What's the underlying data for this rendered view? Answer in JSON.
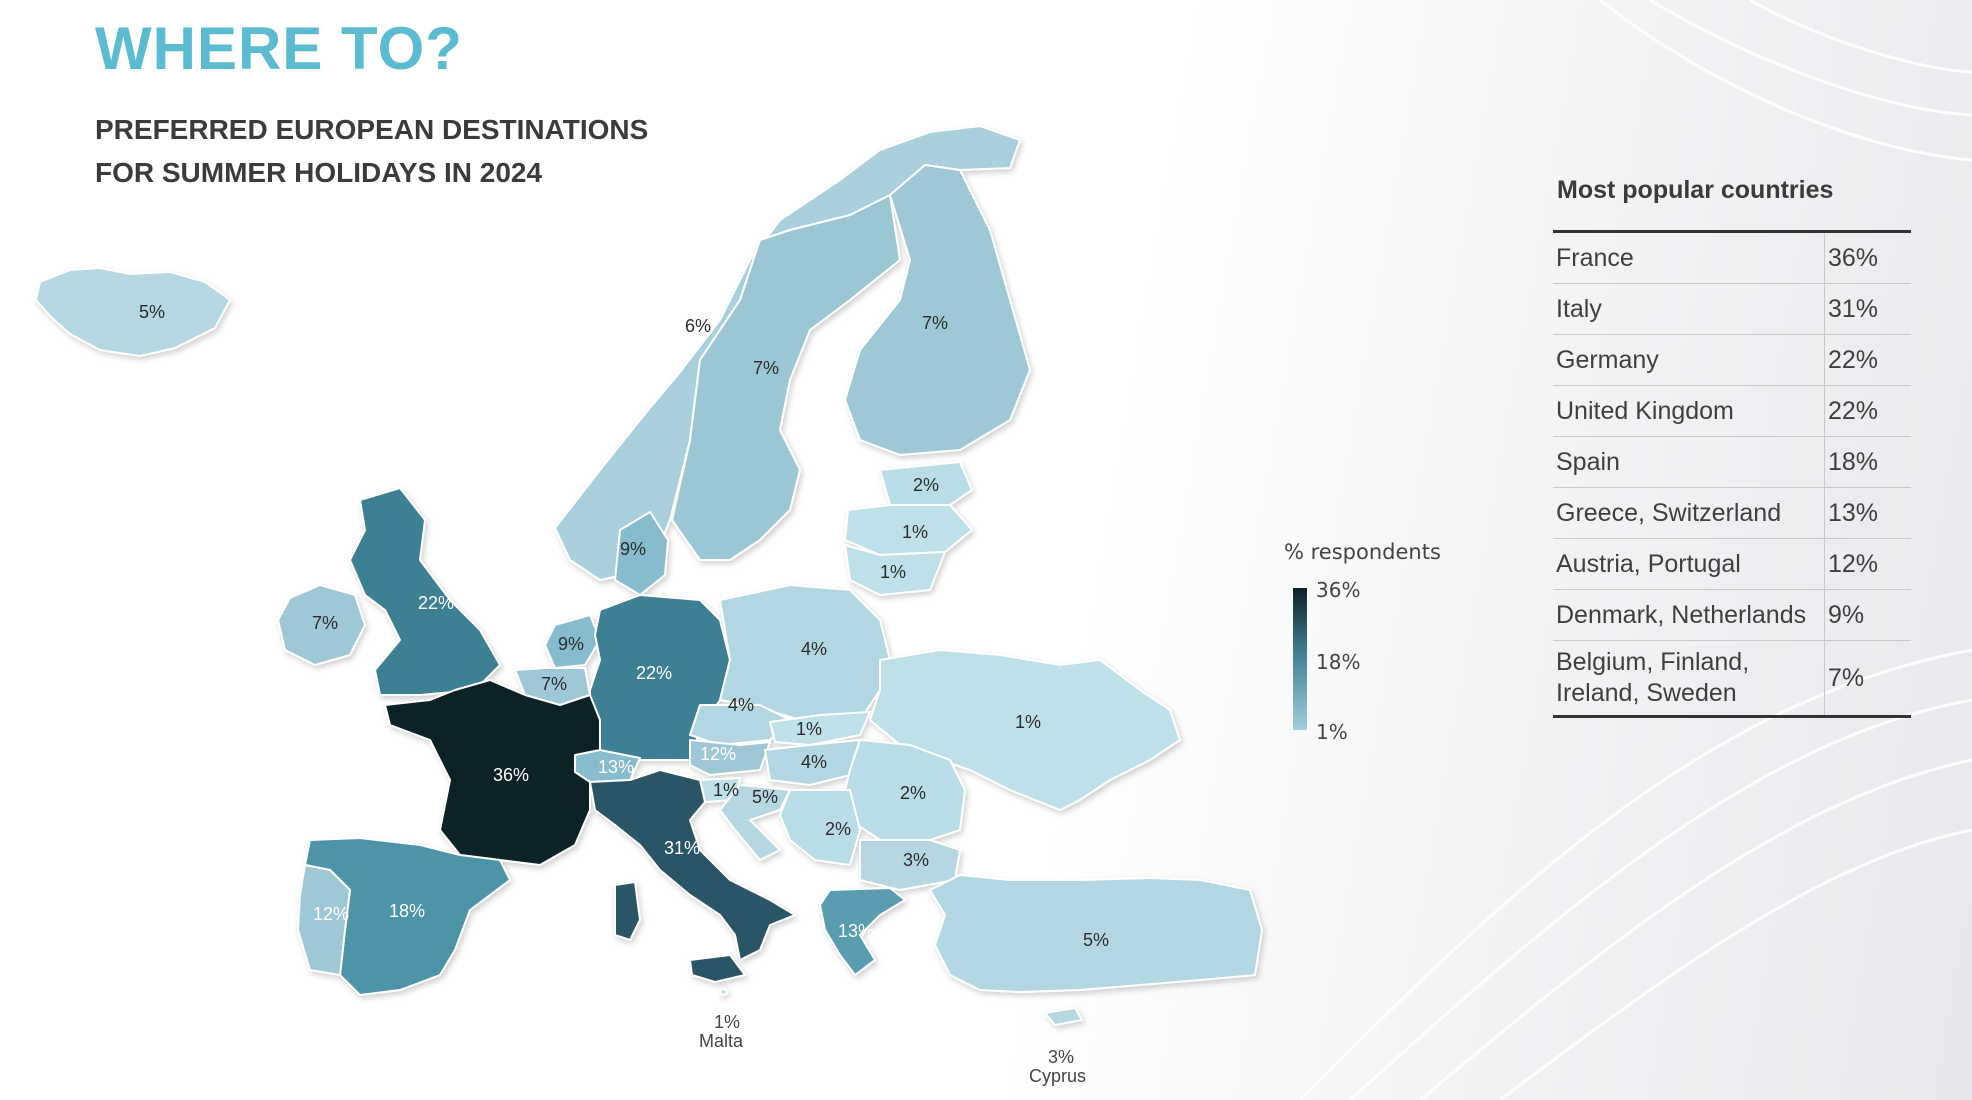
{
  "title": "WHERE TO?",
  "subtitle_line1": "PREFERRED EUROPEAN DESTINATIONS",
  "subtitle_line2": "FOR SUMMER HOLIDAYS IN 2024",
  "legend": {
    "title": "% respondents",
    "max": "36%",
    "mid": "18%",
    "min": "1%",
    "colors": {
      "max": "#0f2027",
      "mid": "#3e7f93",
      "min": "#b6dce6"
    }
  },
  "panel": {
    "title": "Most popular countries",
    "rows": [
      {
        "country": "France",
        "pct": "36%"
      },
      {
        "country": "Italy",
        "pct": "31%"
      },
      {
        "country": "Germany",
        "pct": "22%"
      },
      {
        "country": "United Kingdom",
        "pct": "22%"
      },
      {
        "country": "Spain",
        "pct": "18%"
      },
      {
        "country": "Greece, Switzerland",
        "pct": "13%"
      },
      {
        "country": "Austria, Portugal",
        "pct": "12%"
      },
      {
        "country": "Denmark, Netherlands",
        "pct": "9%"
      },
      {
        "country": "Belgium, Finland, Ireland, Sweden",
        "pct": "7%"
      }
    ]
  },
  "map_labels": {
    "iceland": "5%",
    "norway": "6%",
    "sweden": "7%",
    "finland": "7%",
    "estonia": "2%",
    "latvia": "1%",
    "lithuania": "1%",
    "denmark": "9%",
    "ireland": "7%",
    "uk": "22%",
    "netherlands": "9%",
    "belgium": "7%",
    "germany": "22%",
    "poland": "4%",
    "czechia": "4%",
    "slovakia": "1%",
    "ukraine": "1%",
    "austria": "12%",
    "hungary": "4%",
    "switzerland": "13%",
    "france": "36%",
    "slovenia": "1%",
    "croatia": "5%",
    "romania": "2%",
    "serbia": "2%",
    "bulgaria": "3%",
    "italy": "31%",
    "spain": "18%",
    "portugal": "12%",
    "greece": "13%",
    "turkey": "5%",
    "malta_value": "1%",
    "malta_name": "Malta",
    "cyprus_value": "3%",
    "cyprus_name": "Cyprus"
  }
}
